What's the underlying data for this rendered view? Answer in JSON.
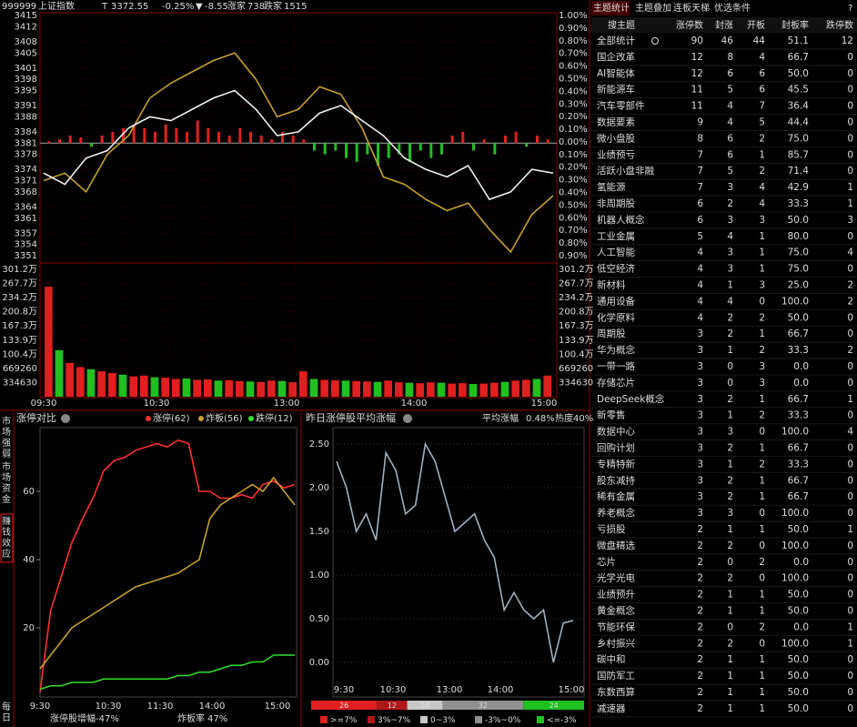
{
  "header": {
    "code": "999999",
    "name": "上证指数",
    "flag": "T",
    "price": "3372.55",
    "pct": "-0.25%",
    "arrow": "▼",
    "change": "-8.55",
    "up_label": "涨家",
    "up": "738",
    "down_label": "跌家",
    "down": "1515"
  },
  "index_chart": {
    "price_ticks": [
      3415,
      3412,
      3408,
      3405,
      3401,
      3398,
      3395,
      3391,
      3388,
      3384,
      3381,
      3378,
      3374,
      3371,
      3368,
      3364,
      3361,
      3357,
      3354,
      3351
    ],
    "pct_ticks": [
      "1.00%",
      "0.90%",
      "0.80%",
      "0.70%",
      "0.60%",
      "0.50%",
      "0.40%",
      "0.30%",
      "0.20%",
      "0.10%",
      "0.00%",
      "0.10%",
      "0.20%",
      "0.30%",
      "0.40%",
      "0.50%",
      "0.60%",
      "0.70%",
      "0.80%",
      "0.90%"
    ],
    "times": [
      "09:30",
      "10:30",
      "13:00",
      "14:00",
      "15:00"
    ],
    "price_line": [
      3373,
      3370,
      3377,
      3379,
      3385,
      3388,
      3387,
      3390,
      3393,
      3395,
      3390,
      3383,
      3384,
      3389,
      3391,
      3387,
      3383,
      3377,
      3374,
      3372,
      3375,
      3366,
      3368,
      3374,
      3373
    ],
    "avg_line": [
      3371,
      3373,
      3368,
      3378,
      3383,
      3393,
      3397,
      3400,
      3403,
      3405,
      3398,
      3388,
      3390,
      3396,
      3394,
      3385,
      3372,
      3370,
      3366,
      3363,
      3365,
      3358,
      3352,
      3362,
      3367
    ],
    "strength_bars": [
      0.5,
      1,
      2,
      1.5,
      -1,
      2,
      3,
      4,
      5,
      4,
      3,
      5,
      4,
      3,
      6,
      4,
      3,
      2,
      4,
      3,
      2,
      1,
      3,
      2,
      1,
      -2,
      -3,
      -2,
      -4,
      -5,
      -3,
      -6,
      -4,
      -3,
      -5,
      -2,
      -4,
      -3,
      2,
      3,
      -2,
      1,
      -3,
      2,
      3,
      -1,
      2,
      1
    ],
    "volume_ticks": [
      {
        "value": 3011670,
        "label": "301.2万"
      },
      {
        "value": 2677040,
        "label": "267.7万"
      },
      {
        "value": 2342410,
        "label": "234.2万"
      },
      {
        "value": 2007780,
        "label": "200.8万"
      },
      {
        "value": 1673150,
        "label": "167.3万"
      },
      {
        "value": 1338520,
        "label": "133.9万"
      },
      {
        "value": 1003890,
        "label": "100.4万"
      },
      669260,
      334630
    ],
    "volume": [
      2600000,
      1100000,
      800000,
      700000,
      650000,
      600000,
      560000,
      520000,
      480000,
      500000,
      460000,
      450000,
      420000,
      430000,
      400000,
      410000,
      380000,
      390000,
      370000,
      360000,
      350000,
      380000,
      370000,
      340000,
      600000,
      420000,
      400000,
      390000,
      380000,
      370000,
      360000,
      350000,
      380000,
      340000,
      330000,
      320000,
      340000,
      330000,
      310000,
      320000,
      300000,
      310000,
      330000,
      350000,
      380000,
      400000,
      420000,
      500000
    ]
  },
  "side_tabs": [
    "市场强弱",
    "市场资金",
    "赚钱效应",
    "每日"
  ],
  "limit_chart": {
    "title": "涨停对比",
    "yticks": [
      20,
      40,
      60
    ],
    "x_labels": [
      "9:30",
      "10:30",
      "11:30",
      "14:00",
      "15:00"
    ],
    "series": [
      {
        "name": "涨停(62)",
        "color": "#ff3030",
        "values": [
          1,
          25,
          35,
          45,
          52,
          58,
          66,
          69,
          70,
          72,
          73,
          74,
          73,
          75,
          74,
          60,
          60,
          58,
          58,
          59,
          58,
          62,
          63,
          61,
          62
        ]
      },
      {
        "name": "炸板(56)",
        "color": "#c8a030",
        "values": [
          8,
          12,
          16,
          20,
          22,
          24,
          26,
          28,
          30,
          32,
          33,
          34,
          35,
          36,
          38,
          40,
          52,
          56,
          58,
          60,
          62,
          60,
          64,
          60,
          56
        ]
      },
      {
        "name": "跌停(12)",
        "color": "#30e030",
        "values": [
          2,
          3,
          3,
          4,
          4,
          4,
          5,
          5,
          5,
          5,
          5,
          5,
          5,
          6,
          6,
          7,
          7,
          8,
          9,
          9,
          10,
          10,
          12,
          12,
          12
        ]
      }
    ],
    "footer": [
      {
        "label": "涨停股增幅",
        "value": "-47%"
      },
      {
        "label": "炸板率",
        "value": "47%"
      }
    ]
  },
  "avg_chart": {
    "title": "昨日涨停股平均涨幅",
    "avg_label": "平均涨幅",
    "avg_value": "0.48%",
    "heat": "热度40%",
    "yticks": [
      {
        "value": 0,
        "label": "0.00"
      },
      {
        "value": 0.5,
        "label": "0.50"
      },
      {
        "value": 1,
        "label": "1.00"
      },
      {
        "value": 1.5,
        "label": "1.50"
      },
      {
        "value": 2,
        "label": "2.00"
      },
      {
        "value": 2.5,
        "label": "2.50"
      }
    ],
    "x_labels": [
      "9:30",
      "10:30",
      "13:00",
      "14:00",
      "15:00"
    ],
    "values": [
      2.3,
      2.0,
      1.5,
      1.7,
      1.4,
      2.4,
      2.2,
      1.7,
      1.8,
      2.5,
      2.3,
      1.9,
      1.5,
      1.6,
      1.7,
      1.4,
      1.2,
      0.6,
      0.8,
      0.6,
      0.5,
      0.6,
      0.0,
      0.45,
      0.48
    ],
    "distribution": {
      "values": [
        26,
        12,
        14,
        32,
        24
      ],
      "labels": [
        ">=7%",
        "3%~7%",
        "0~3%",
        "-3%~0%",
        "<=-3%"
      ],
      "colors": [
        "#e02020",
        "#b01818",
        "#c8c8c8",
        "#909090",
        "#20c020"
      ]
    }
  },
  "table": {
    "tabs": [
      "主题统计",
      "主题叠加",
      "连板天梯",
      "优选条件",
      "?"
    ],
    "columns": [
      "搜主题",
      "涨停数",
      "封涨",
      "开板",
      "封板率",
      "跌停数"
    ],
    "rows": [
      [
        "全部统计",
        "90",
        "46",
        "44",
        "51.1",
        "12"
      ],
      [
        "国企改革",
        "12",
        "8",
        "4",
        "66.7",
        "0"
      ],
      [
        "AI智能体",
        "12",
        "6",
        "6",
        "50.0",
        "0"
      ],
      [
        "新能源车",
        "11",
        "5",
        "6",
        "45.5",
        "0"
      ],
      [
        "汽车零部件",
        "11",
        "4",
        "7",
        "36.4",
        "0"
      ],
      [
        "数据要素",
        "9",
        "4",
        "5",
        "44.4",
        "0"
      ],
      [
        "微小盘股",
        "8",
        "6",
        "2",
        "75.0",
        "0"
      ],
      [
        "业绩预亏",
        "7",
        "6",
        "1",
        "85.7",
        "0"
      ],
      [
        "活跃小盘非融",
        "7",
        "5",
        "2",
        "71.4",
        "0"
      ],
      [
        "氢能源",
        "7",
        "3",
        "4",
        "42.9",
        "1"
      ],
      [
        "非周期股",
        "6",
        "2",
        "4",
        "33.3",
        "1"
      ],
      [
        "机器人概念",
        "6",
        "3",
        "3",
        "50.0",
        "3"
      ],
      [
        "工业金属",
        "5",
        "4",
        "1",
        "80.0",
        "0"
      ],
      [
        "人工智能",
        "4",
        "3",
        "1",
        "75.0",
        "4"
      ],
      [
        "低空经济",
        "4",
        "3",
        "1",
        "75.0",
        "0"
      ],
      [
        "新材料",
        "4",
        "1",
        "3",
        "25.0",
        "2"
      ],
      [
        "通用设备",
        "4",
        "4",
        "0",
        "100.0",
        "2"
      ],
      [
        "化学原料",
        "4",
        "2",
        "2",
        "50.0",
        "0"
      ],
      [
        "周期股",
        "3",
        "2",
        "1",
        "66.7",
        "0"
      ],
      [
        "华为概念",
        "3",
        "1",
        "2",
        "33.3",
        "2"
      ],
      [
        "一带一路",
        "3",
        "0",
        "3",
        "0.0",
        "0"
      ],
      [
        "存储芯片",
        "3",
        "0",
        "3",
        "0.0",
        "0"
      ],
      [
        "DeepSeek概念",
        "3",
        "2",
        "1",
        "66.7",
        "1"
      ],
      [
        "新零售",
        "3",
        "1",
        "2",
        "33.3",
        "0"
      ],
      [
        "数据中心",
        "3",
        "3",
        "0",
        "100.0",
        "4"
      ],
      [
        "回购计划",
        "3",
        "2",
        "1",
        "66.7",
        "0"
      ],
      [
        "专精特新",
        "3",
        "1",
        "2",
        "33.3",
        "0"
      ],
      [
        "股东减持",
        "3",
        "2",
        "1",
        "66.7",
        "0"
      ],
      [
        "稀有金属",
        "3",
        "2",
        "1",
        "66.7",
        "0"
      ],
      [
        "养老概念",
        "3",
        "3",
        "0",
        "100.0",
        "0"
      ],
      [
        "亏损股",
        "2",
        "1",
        "1",
        "50.0",
        "1"
      ],
      [
        "微盘精选",
        "2",
        "2",
        "0",
        "100.0",
        "0"
      ],
      [
        "芯片",
        "2",
        "0",
        "2",
        "0.0",
        "0"
      ],
      [
        "光学光电",
        "2",
        "2",
        "0",
        "100.0",
        "0"
      ],
      [
        "业绩预升",
        "2",
        "1",
        "1",
        "50.0",
        "0"
      ],
      [
        "黄金概念",
        "2",
        "1",
        "1",
        "50.0",
        "0"
      ],
      [
        "节能环保",
        "2",
        "0",
        "2",
        "0.0",
        "1"
      ],
      [
        "乡村振兴",
        "2",
        "2",
        "0",
        "100.0",
        "1"
      ],
      [
        "碳中和",
        "2",
        "1",
        "1",
        "50.0",
        "0"
      ],
      [
        "国防军工",
        "2",
        "1",
        "1",
        "50.0",
        "0"
      ],
      [
        "东数西算",
        "2",
        "1",
        "1",
        "50.0",
        "0"
      ],
      [
        "减速器",
        "2",
        "1",
        "1",
        "50.0",
        "0"
      ]
    ]
  }
}
